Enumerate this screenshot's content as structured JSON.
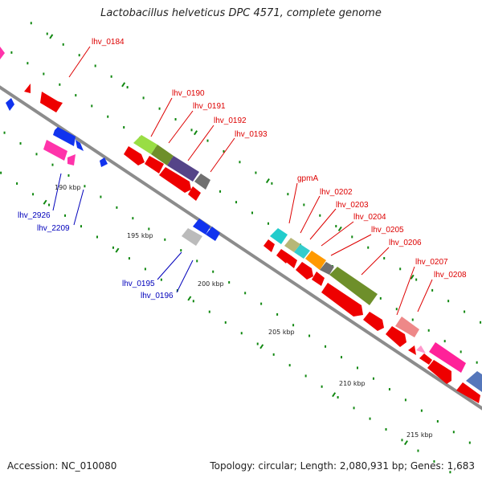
{
  "title": "Lactobacillus helveticus DPC 4571, complete genome",
  "footer": {
    "accession": "Accession: NC_010080",
    "summary": "Topology: circular; Length: 2,080,931 bp; Genes: 1,683"
  },
  "colors": {
    "backbone": "#8c8c8c",
    "tick": "#118811",
    "label_forward": "#dd0000",
    "label_reverse": "#0000bb",
    "cds": "#ee0000"
  },
  "ticks": [
    {
      "label": "190 kbp"
    },
    {
      "label": "195 kbp"
    },
    {
      "label": "200 kbp"
    },
    {
      "label": "205 kbp"
    },
    {
      "label": "210 kbp"
    },
    {
      "label": "215 kbp"
    }
  ],
  "gene_labels": {
    "top": [
      {
        "text": "lhv_0184"
      },
      {
        "text": "lhv_0190"
      },
      {
        "text": "lhv_0191"
      },
      {
        "text": "lhv_0192"
      },
      {
        "text": "lhv_0193"
      },
      {
        "text": "gpmA"
      },
      {
        "text": "lhv_0202"
      },
      {
        "text": "lhv_0203"
      },
      {
        "text": "lhv_0204"
      },
      {
        "text": "lhv_0205"
      },
      {
        "text": "lhv_0206"
      },
      {
        "text": "lhv_0207"
      },
      {
        "text": "lhv_0208"
      }
    ],
    "bottom": [
      {
        "text": "lhv_2926"
      },
      {
        "text": "lhv_2209"
      },
      {
        "text": "lhv_0195"
      },
      {
        "text": "lhv_0196"
      }
    ]
  },
  "feature_colors": {
    "lhv_0190": "#99dd44",
    "lhv_0191": "#6e8f2a",
    "lhv_0192": "#554488",
    "lhv_0193": "#707070",
    "gpmA": "#22cccc",
    "lhv_0202": "#b7b777",
    "lhv_0203": "#33cccc",
    "lhv_0204": "#ff9900",
    "lhv_0205": "#6e8f2a",
    "lhv_0207": "#ee8888",
    "lhv_0208": "#ff2299",
    "blue": "#1133ee",
    "pink": "#ff33aa",
    "grey": "#bbbbbb",
    "steel": "#5577bb"
  }
}
